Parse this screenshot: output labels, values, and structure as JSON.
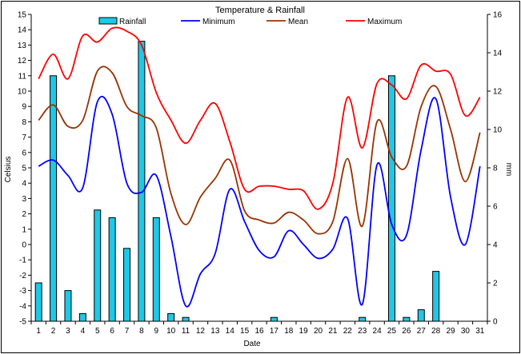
{
  "chart_data": {
    "type": "bar+line",
    "title": "Temperature & Rainfall",
    "xlabel": "Date",
    "ylabel_left": "Celsius",
    "ylabel_right": "mm",
    "ylim_left": [
      -5,
      15
    ],
    "ylim_right": [
      0,
      16
    ],
    "yticks_left": [
      -5,
      -4,
      -3,
      -2,
      -1,
      0,
      1,
      2,
      3,
      4,
      5,
      6,
      7,
      8,
      9,
      10,
      11,
      12,
      13,
      14,
      15
    ],
    "yticks_right": [
      0,
      2,
      4,
      6,
      8,
      10,
      12,
      14,
      16
    ],
    "categories": [
      "1",
      "2",
      "3",
      "4",
      "5",
      "6",
      "7",
      "8",
      "9",
      "10",
      "11",
      "12",
      "13",
      "14",
      "15",
      "16",
      "17",
      "18",
      "19",
      "20",
      "21",
      "22",
      "23",
      "24",
      "25",
      "26",
      "27",
      "28",
      "29",
      "30",
      "31"
    ],
    "legend_position": "top",
    "grid": false,
    "bars": {
      "name": "Rainfall",
      "axis": "right",
      "color": "#1ec8e6",
      "values": [
        2.0,
        12.8,
        1.6,
        0.4,
        5.8,
        5.4,
        3.8,
        14.6,
        5.4,
        0.4,
        0.2,
        0,
        0,
        0,
        0,
        0,
        0.2,
        0,
        0,
        0,
        0,
        0,
        0.2,
        0,
        12.8,
        0.2,
        0.6,
        2.6,
        0,
        0,
        0
      ]
    },
    "series": [
      {
        "name": "Minimum",
        "axis": "left",
        "color": "#0000ff",
        "values": [
          5.1,
          5.5,
          4.5,
          3.7,
          9.3,
          8.5,
          4.0,
          3.4,
          4.5,
          0.5,
          -4.0,
          -1.9,
          -0.6,
          3.6,
          1.5,
          -0.4,
          -0.8,
          0.9,
          0.0,
          -0.9,
          -0.3,
          1.7,
          -3.9,
          5.2,
          1.3,
          0.6,
          6.2,
          9.5,
          3.1,
          0.0,
          5.1
        ]
      },
      {
        "name": "Mean",
        "axis": "left",
        "color": "#993300",
        "values": [
          8.1,
          9.1,
          7.7,
          8.1,
          11.3,
          11.2,
          9.0,
          8.4,
          7.6,
          3.3,
          1.3,
          3.1,
          4.3,
          5.5,
          2.2,
          1.6,
          1.4,
          2.1,
          1.6,
          0.7,
          1.5,
          5.6,
          1.2,
          8.0,
          5.7,
          5.1,
          9.0,
          10.3,
          7.5,
          4.1,
          7.3
        ]
      },
      {
        "name": "Maximum",
        "axis": "left",
        "color": "#ff0000",
        "values": [
          10.8,
          12.4,
          10.8,
          13.6,
          13.2,
          14.1,
          13.9,
          13.0,
          9.9,
          8.1,
          6.6,
          8.1,
          9.2,
          6.7,
          3.6,
          3.8,
          3.8,
          3.6,
          3.5,
          2.3,
          4.0,
          9.6,
          6.3,
          10.5,
          10.4,
          9.5,
          11.7,
          11.3,
          11.1,
          8.4,
          9.6
        ]
      }
    ]
  }
}
